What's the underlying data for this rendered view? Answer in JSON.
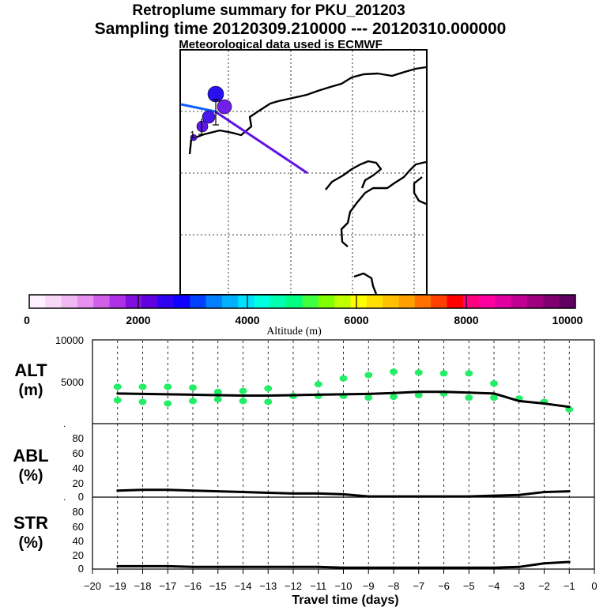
{
  "title_line1": "Retroplume summary for PKU_201203",
  "title_line2": "Sampling time   20120309.210000 --- 20120310.000000",
  "title_line3": "Meteorological data used is ECMWF",
  "colorbar": {
    "label": "Altitude (m)",
    "ticks": [
      "0",
      "2000",
      "4000",
      "6000",
      "8000",
      "10000"
    ],
    "colors": [
      "#fff0ff",
      "#f8d8f8",
      "#f0b8f0",
      "#e890f0",
      "#d060e8",
      "#b030e8",
      "#8010e0",
      "#6000e0",
      "#3000f0",
      "#1000ff",
      "#0040ff",
      "#0080ff",
      "#00b0ff",
      "#00e0ff",
      "#00ffe0",
      "#00ffb0",
      "#00ff80",
      "#40ff40",
      "#80ff00",
      "#c0ff00",
      "#ffff00",
      "#ffe000",
      "#ffc000",
      "#ffa000",
      "#ff7000",
      "#ff4000",
      "#ff0000",
      "#ff0080",
      "#ff00a0",
      "#e000a0",
      "#c00090",
      "#a00080",
      "#800070",
      "#600060"
    ]
  },
  "map": {
    "point_label": "1"
  },
  "panels": {
    "alt": {
      "name": "ALT",
      "unit": "(m)",
      "yticks": [
        "10000",
        "5000"
      ],
      "corner": "."
    },
    "abl": {
      "name": "ABL",
      "unit": "(%)",
      "yticks": [
        "80",
        "60",
        "40",
        "20",
        "0"
      ],
      "corner": "."
    },
    "str": {
      "name": "STR",
      "unit": "(%)",
      "yticks": [
        "80",
        "60",
        "40",
        "20",
        "0"
      ]
    }
  },
  "x_axis": {
    "label": "Travel time (days)",
    "ticks": [
      "−20",
      "−19",
      "−18",
      "−17",
      "−16",
      "−15",
      "−14",
      "−13",
      "−12",
      "−11",
      "−10",
      "−9",
      "−8",
      "−7",
      "−6",
      "−5",
      "−4",
      "−3",
      "−2",
      "−1",
      "0"
    ]
  },
  "chart_data": [
    {
      "type": "line",
      "title": "ALT",
      "xlabel": "Travel time (days)",
      "ylabel": "ALT (m)",
      "xlim": [
        -20,
        0
      ],
      "ylim": [
        0,
        10000
      ],
      "x": [
        -19,
        -18,
        -17,
        -16,
        -15,
        -14,
        -13,
        -12,
        -11,
        -10,
        -9,
        -8,
        -7,
        -6,
        -5,
        -4,
        -3,
        -2,
        -1
      ],
      "values": [
        3600,
        3550,
        3500,
        3450,
        3400,
        3350,
        3350,
        3400,
        3450,
        3500,
        3550,
        3650,
        3800,
        3800,
        3700,
        3600,
        2700,
        2400,
        2000
      ],
      "scatter_color": "#22ee66",
      "scatter_points": [
        {
          "x": -19,
          "y": 4400
        },
        {
          "x": -19,
          "y": 2800
        },
        {
          "x": -18,
          "y": 4400
        },
        {
          "x": -18,
          "y": 2600
        },
        {
          "x": -17,
          "y": 4400
        },
        {
          "x": -17,
          "y": 2400
        },
        {
          "x": -16,
          "y": 4300
        },
        {
          "x": -16,
          "y": 2700
        },
        {
          "x": -15,
          "y": 3800
        },
        {
          "x": -15,
          "y": 2900
        },
        {
          "x": -14,
          "y": 3900
        },
        {
          "x": -14,
          "y": 2700
        },
        {
          "x": -13,
          "y": 4200
        },
        {
          "x": -13,
          "y": 2600
        },
        {
          "x": -12,
          "y": 3300
        },
        {
          "x": -11,
          "y": 4700
        },
        {
          "x": -11,
          "y": 3300
        },
        {
          "x": -10,
          "y": 5400
        },
        {
          "x": -10,
          "y": 3300
        },
        {
          "x": -9,
          "y": 5800
        },
        {
          "x": -9,
          "y": 3100
        },
        {
          "x": -8,
          "y": 6200
        },
        {
          "x": -8,
          "y": 3200
        },
        {
          "x": -7,
          "y": 6100
        },
        {
          "x": -7,
          "y": 3400
        },
        {
          "x": -6,
          "y": 6000
        },
        {
          "x": -6,
          "y": 3600
        },
        {
          "x": -5,
          "y": 6000
        },
        {
          "x": -5,
          "y": 3100
        },
        {
          "x": -4,
          "y": 4800
        },
        {
          "x": -4,
          "y": 3100
        },
        {
          "x": -3,
          "y": 3000
        },
        {
          "x": -2,
          "y": 2600
        },
        {
          "x": -1,
          "y": 1700
        }
      ]
    },
    {
      "type": "line",
      "title": "ABL",
      "xlabel": "Travel time (days)",
      "ylabel": "ABL (%)",
      "xlim": [
        -20,
        0
      ],
      "ylim": [
        0,
        100
      ],
      "x": [
        -19,
        -18,
        -17,
        -16,
        -15,
        -14,
        -13,
        -12,
        -11,
        -10,
        -9,
        -8,
        -7,
        -6,
        -5,
        -4,
        -3,
        -2,
        -1
      ],
      "values": [
        9,
        10,
        10,
        9,
        8,
        7,
        6,
        5,
        5,
        4,
        1,
        1,
        1,
        1,
        1,
        2,
        3,
        7,
        8
      ]
    },
    {
      "type": "line",
      "title": "STR",
      "xlabel": "Travel time (days)",
      "ylabel": "STR (%)",
      "xlim": [
        -20,
        0
      ],
      "ylim": [
        0,
        100
      ],
      "x": [
        -19,
        -18,
        -17,
        -16,
        -15,
        -14,
        -13,
        -12,
        -11,
        -10,
        -9,
        -8,
        -7,
        -6,
        -5,
        -4,
        -3,
        -2,
        -1
      ],
      "values": [
        4,
        4,
        4,
        3,
        3,
        3,
        3,
        3,
        3,
        2,
        2,
        2,
        2,
        2,
        2,
        2,
        3,
        8,
        10
      ]
    }
  ]
}
